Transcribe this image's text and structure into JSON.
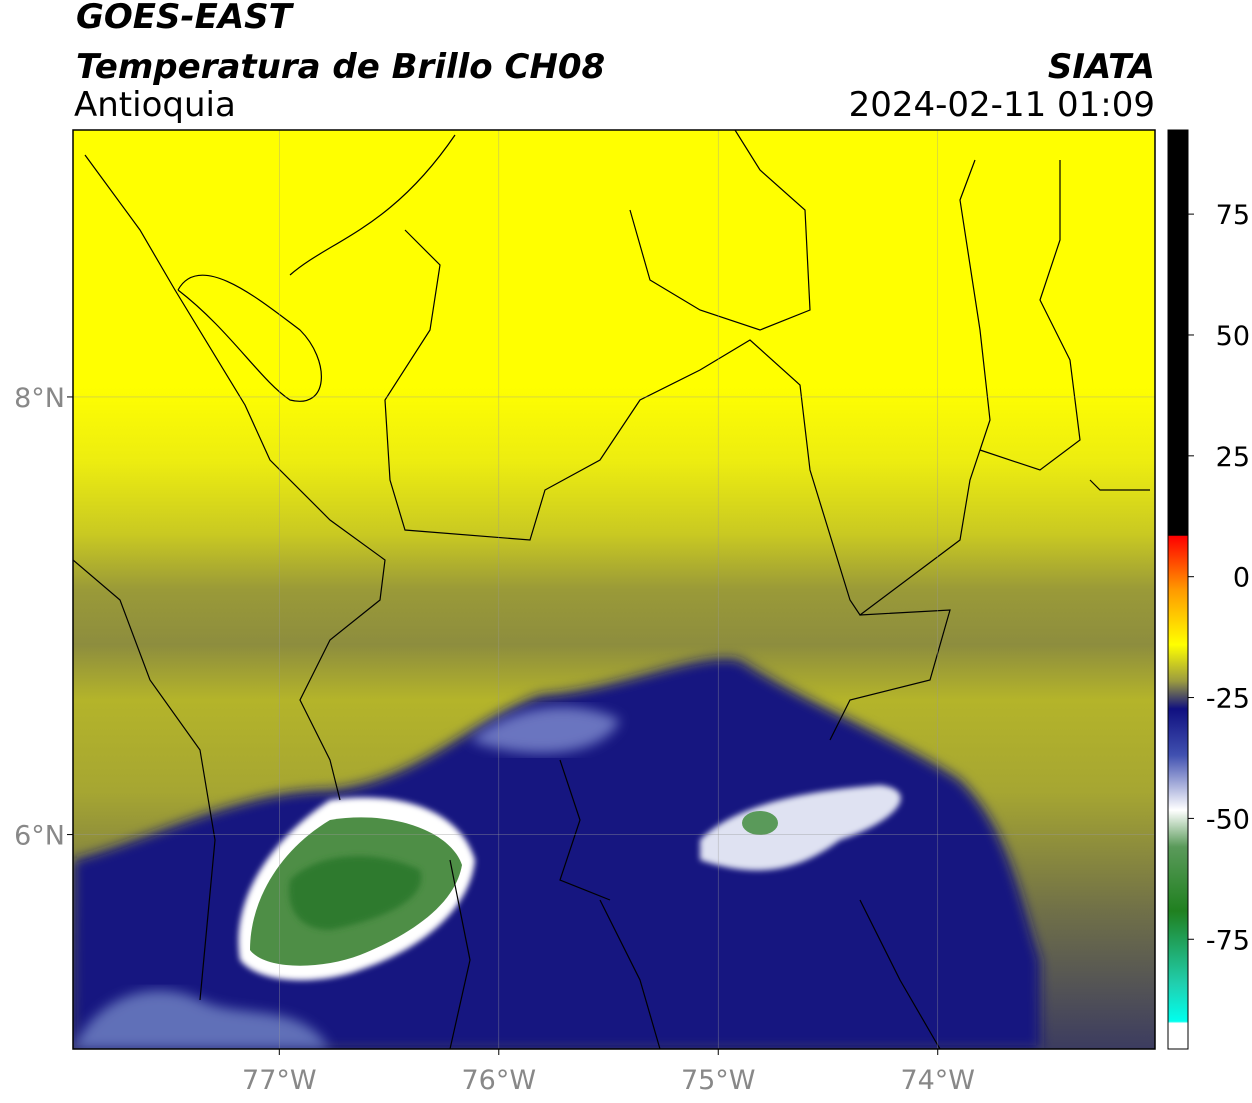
{
  "header": {
    "title": "GOES-EAST",
    "subtitle": "Temperatura de Brillo CH08",
    "region": "Antioquia",
    "source": "SIATA",
    "datetime": "2024-02-11 01:09"
  },
  "map": {
    "xlim": [
      -77.94,
      -73.01
    ],
    "ylim": [
      5.02,
      9.22
    ],
    "xticks": [
      {
        "value": -77,
        "label": "77°W"
      },
      {
        "value": -76,
        "label": "76°W"
      },
      {
        "value": -75,
        "label": "75°W"
      },
      {
        "value": -74,
        "label": "74°W"
      }
    ],
    "yticks": [
      {
        "value": 8,
        "label": "8°N"
      },
      {
        "value": 6,
        "label": "6°N"
      }
    ],
    "grid": true
  },
  "colorbar": {
    "lim": [
      -97.7,
      92.4
    ],
    "ticks": [
      75,
      50,
      25,
      0,
      -25,
      -50,
      -75
    ]
  }
}
